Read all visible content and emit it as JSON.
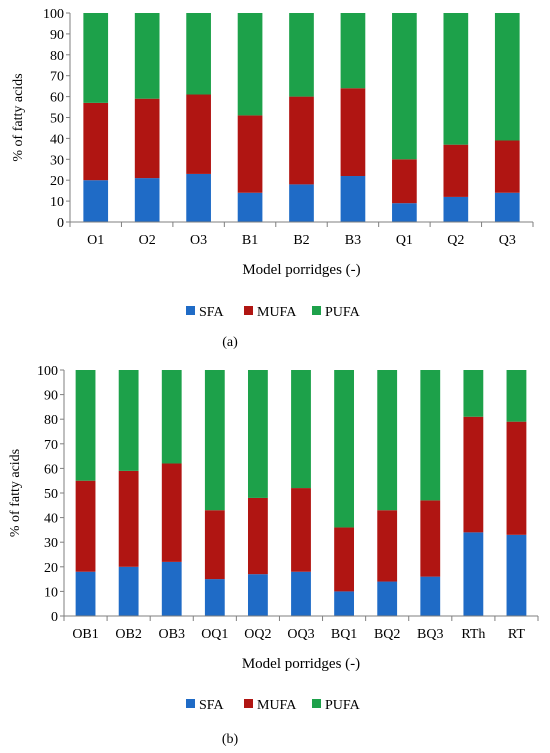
{
  "colors": {
    "SFA": "#1f6bc6",
    "MUFA": "#b01512",
    "PUFA": "#1da14a"
  },
  "chart_data": [
    {
      "type": "bar",
      "stacked": true,
      "panel_label": "(a)",
      "categories": [
        "O1",
        "O2",
        "O3",
        "B1",
        "B2",
        "B3",
        "Q1",
        "Q2",
        "Q3"
      ],
      "series": [
        {
          "name": "SFA",
          "values": [
            20,
            21,
            23,
            14,
            18,
            22,
            9,
            12,
            14
          ]
        },
        {
          "name": "MUFA",
          "values": [
            37,
            38,
            38,
            37,
            42,
            42,
            21,
            25,
            25
          ]
        },
        {
          "name": "PUFA",
          "values": [
            43,
            41,
            39,
            49,
            40,
            36,
            70,
            63,
            61
          ]
        }
      ],
      "xlabel": "Model porridges (-)",
      "ylabel": "% of fatty acids",
      "ylim": [
        0,
        100
      ],
      "yticks": [
        "0",
        "10",
        "20",
        "30",
        "40",
        "50",
        "60",
        "70",
        "80",
        "90",
        "100"
      ],
      "grid": false,
      "legend": "bottom"
    },
    {
      "type": "bar",
      "stacked": true,
      "panel_label": "(b)",
      "categories": [
        "OB1",
        "OB2",
        "OB3",
        "OQ1",
        "OQ2",
        "OQ3",
        "BQ1",
        "BQ2",
        "BQ3",
        "RTh",
        "RT"
      ],
      "series": [
        {
          "name": "SFA",
          "values": [
            18,
            20,
            22,
            15,
            17,
            18,
            10,
            14,
            16,
            34,
            33
          ]
        },
        {
          "name": "MUFA",
          "values": [
            37,
            39,
            40,
            28,
            31,
            34,
            26,
            29,
            31,
            47,
            46
          ]
        },
        {
          "name": "PUFA",
          "values": [
            45,
            41,
            38,
            57,
            52,
            48,
            64,
            57,
            53,
            19,
            21
          ]
        }
      ],
      "xlabel": "Model porridges (-)",
      "ylabel": "% of fatty acids",
      "ylim": [
        0,
        100
      ],
      "yticks": [
        "0",
        "10",
        "20",
        "30",
        "40",
        "50",
        "60",
        "70",
        "80",
        "90",
        "100"
      ],
      "grid": false,
      "legend": "bottom"
    }
  ]
}
